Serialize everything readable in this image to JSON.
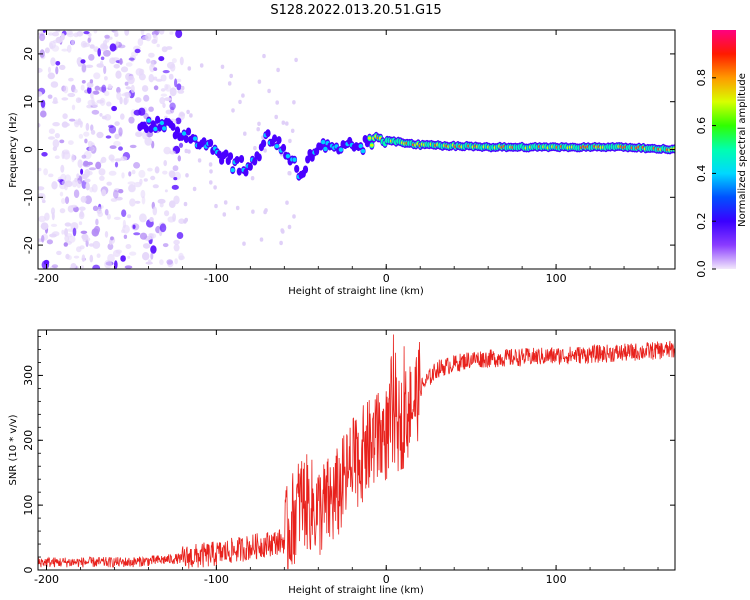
{
  "title": "S128.2022.013.20.51.G15",
  "chart_data": [
    {
      "type": "heatmap",
      "name": "spectrogram",
      "xlabel": "Height of straight line (km)",
      "ylabel": "Frequency (Hz)",
      "xlim": [
        -205,
        170
      ],
      "ylim": [
        -25,
        25
      ],
      "xticks": [
        -200,
        -100,
        0,
        100
      ],
      "yticks": [
        -20,
        -10,
        0,
        10,
        20
      ],
      "colorbar": {
        "label": "Normalized spectral amplitude",
        "range": [
          0,
          1
        ],
        "ticks": [
          "0.0",
          "0.2",
          "0.4",
          "0.6",
          "0.8"
        ]
      },
      "ridge": {
        "x": [
          -145,
          -130,
          -115,
          -100,
          -90,
          -80,
          -70,
          -60,
          -50,
          -40,
          -30,
          -20,
          -10,
          0,
          20,
          60,
          100,
          140,
          170
        ],
        "y": [
          6,
          4.5,
          3,
          0,
          -3,
          -4,
          3,
          0,
          -5,
          1,
          -0.5,
          0.5,
          1,
          2,
          1,
          0.5,
          0.5,
          0.5,
          0
        ]
      }
    },
    {
      "type": "line",
      "name": "snr",
      "xlabel": "Height of straight line (km)",
      "ylabel": "SNR (10 * v/v)",
      "xlim": [
        -205,
        170
      ],
      "ylim": [
        0,
        370
      ],
      "xticks": [
        -200,
        -100,
        0,
        100
      ],
      "yticks": [
        0,
        100,
        200,
        300
      ],
      "color": "#e8211c",
      "trend": {
        "x": [
          -205,
          -150,
          -120,
          -100,
          -80,
          -60,
          -50,
          -40,
          -30,
          -20,
          -10,
          0,
          10,
          20,
          30,
          50,
          100,
          140,
          170
        ],
        "y": [
          12,
          12,
          18,
          25,
          35,
          45,
          110,
          90,
          110,
          160,
          190,
          210,
          230,
          280,
          310,
          325,
          330,
          335,
          340
        ]
      }
    }
  ]
}
